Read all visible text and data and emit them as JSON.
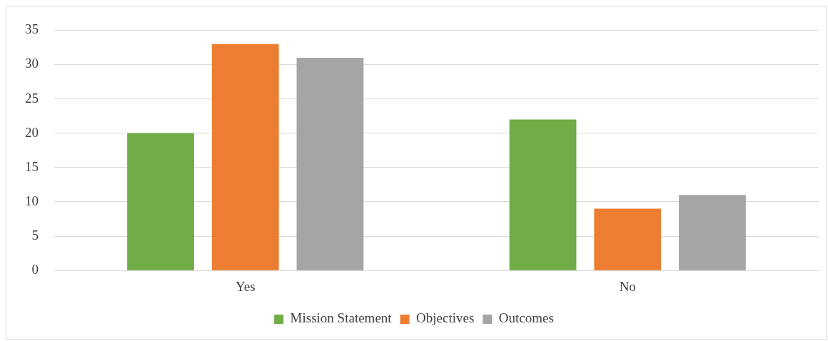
{
  "chart_data": {
    "type": "bar",
    "categories": [
      "Yes",
      "No"
    ],
    "series": [
      {
        "name": "Mission Statement",
        "color": "#70ad47",
        "values": [
          20,
          22
        ]
      },
      {
        "name": "Objectives",
        "color": "#ed7d31",
        "values": [
          33,
          9
        ]
      },
      {
        "name": "Outcomes",
        "color": "#a5a5a5",
        "values": [
          31,
          11
        ]
      }
    ],
    "ylim": [
      0,
      35
    ],
    "yticks": [
      0,
      5,
      10,
      15,
      20,
      25,
      30,
      35
    ],
    "grid": "y",
    "legend": "bottom"
  }
}
